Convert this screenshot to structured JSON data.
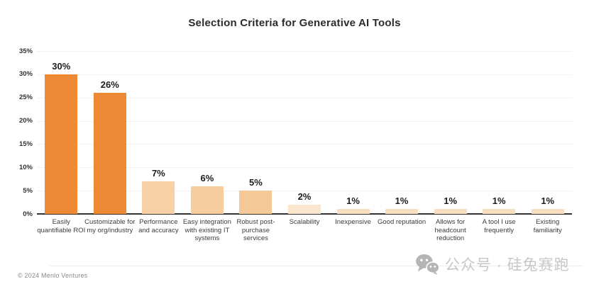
{
  "title": "Selection Criteria for Generative AI Tools",
  "chart_data": {
    "type": "bar",
    "title": "Selection Criteria for Generative AI Tools",
    "categories": [
      "Easily quantifiable ROI",
      "Customizable for my org/industry",
      "Performance and accuracy",
      "Easy integration with existing IT systems",
      "Robust post-purchase services",
      "Scalability",
      "Inexpensive",
      "Good reputation",
      "Allows for headcount reduction",
      "A tool I use frequently",
      "Existing familiarity"
    ],
    "values": [
      30,
      26,
      7,
      6,
      5,
      2,
      1,
      1,
      1,
      1,
      1
    ],
    "value_labels": [
      "30%",
      "26%",
      "7%",
      "6%",
      "5%",
      "2%",
      "1%",
      "1%",
      "1%",
      "1%",
      "1%"
    ],
    "bar_colors": [
      "#EE8A35",
      "#EE8A35",
      "#F7D0A5",
      "#F6CD9E",
      "#F5C997",
      "#FAE5CD",
      "#F8DFC2",
      "#F8DFC2",
      "#F8DFC2",
      "#F8DFC2",
      "#F8DFC2"
    ],
    "xlabel": "",
    "ylabel": "",
    "ylim": [
      0,
      35
    ],
    "ytick_step": 5,
    "ytick_labels_top_to_bottom": [
      "35%",
      "30%",
      "25%",
      "20%",
      "15%",
      "10%",
      "5%",
      "0%"
    ],
    "grid": true,
    "legend_position": "none"
  },
  "footer": {
    "copyright": "© 2024 Menlo Ventures"
  },
  "watermark": {
    "icon": "wechat-icon",
    "text": "公众号 · 硅兔赛跑"
  },
  "colors": {
    "bar_primary": "#EE8A35",
    "bar_medium": "#F6CD9E",
    "bar_light": "#F8DFC2",
    "grid_line": "#F2F2F2",
    "axis_line": "#333333",
    "title_text": "#2B2B2B",
    "value_label_text": "#1C1C1C",
    "category_text": "#3C3C3C",
    "muted_text": "#8A8A8A",
    "watermark_text": "#C7C7C7"
  }
}
